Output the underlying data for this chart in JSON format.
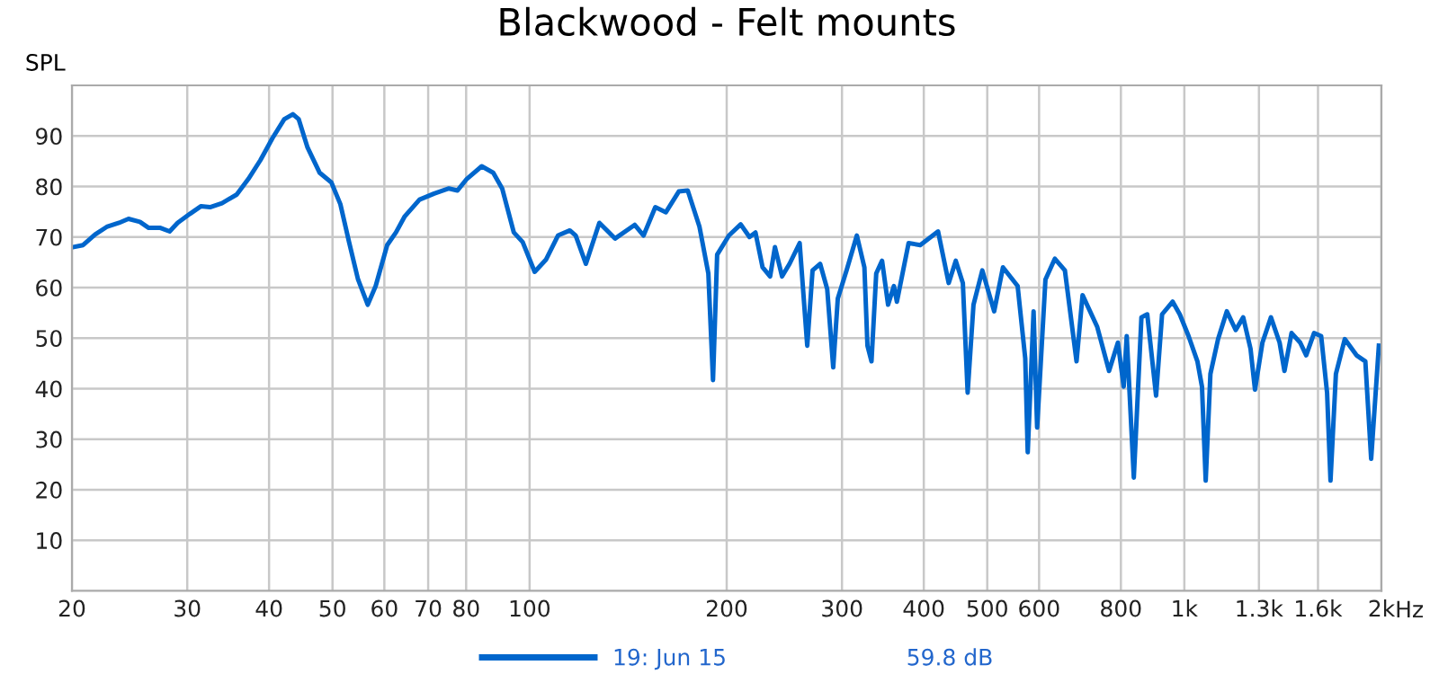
{
  "chart_data": {
    "type": "line",
    "title": "Blackwood - Felt mounts",
    "ylabel": "SPL",
    "xlim": [
      20,
      2000
    ],
    "ylim": [
      0,
      100
    ],
    "log": "x",
    "grid": true,
    "legend": "bottom",
    "line_style": "solid",
    "marker": "none",
    "xticks": [
      20,
      30,
      40,
      50,
      60,
      70,
      80,
      100,
      200,
      300,
      400,
      500,
      600,
      800,
      {
        "value": 1000,
        "label": "1k"
      },
      {
        "value": 1300,
        "label": "1.3k"
      },
      {
        "value": 1600,
        "label": "1.6k"
      },
      {
        "value": 2000,
        "label": "2k"
      }
    ],
    "xlabel": "Hz",
    "yticks": [
      10,
      20,
      30,
      40,
      50,
      60,
      70,
      80,
      90
    ],
    "annotations": [
      "59.8 dB"
    ],
    "series": [
      {
        "name": "19: Jun 15",
        "color": "#0066cc",
        "x": [
          20.1,
          20.8,
          21.7,
          22.6,
          23.6,
          24.4,
          25.4,
          26.2,
          27.3,
          28.2,
          29.0,
          30.3,
          31.5,
          32.5,
          33.9,
          35.7,
          37.2,
          38.8,
          40.5,
          42.2,
          43.5,
          44.4,
          45.8,
          47.8,
          49.8,
          51.4,
          53.0,
          54.7,
          56.6,
          58.2,
          60.6,
          62.5,
          64.4,
          67.9,
          71.5,
          75.3,
          77.6,
          80.2,
          84.5,
          88.0,
          90.8,
          94.6,
          97.6,
          101.8,
          105.9,
          110.5,
          115.2,
          117.6,
          121.9,
          127.8,
          135.1,
          144.7,
          149.3,
          155.6,
          161.5,
          169.0,
          174.4,
          181.7,
          187.5,
          190.6,
          193.4,
          201.6,
          210.1,
          216.7,
          221.3,
          226.9,
          233.0,
          237.0,
          243.0,
          249.5,
          258.5,
          265.5,
          270.5,
          277.8,
          284.8,
          290.9,
          295.6,
          304.9,
          316.1,
          324.6,
          328.1,
          332.8,
          338.4,
          345.4,
          352.8,
          360.1,
          363.9,
          379.2,
          395,
          420.6,
          436.6,
          447.6,
          458.9,
          466.7,
          476.4,
          491.4,
          512.3,
          528.4,
          556.4,
          571.5,
          576.5,
          588.5,
          595.9,
          613.6,
          634.1,
          657.0,
          684.5,
          699.1,
          736.2,
          767.4,
          791.6,
          808.0,
          816.6,
          837.2,
          859.9,
          877.7,
          905.4,
          924.7,
          959.8,
          984.0,
          1015,
          1047,
          1064,
          1078,
          1096,
          1126,
          1161,
          1198,
          1230,
          1262,
          1282,
          1316,
          1356,
          1398,
          1422,
          1458,
          1503,
          1535,
          1578,
          1618,
          1652,
          1672,
          1704,
          1758,
          1832,
          1890,
          1929,
          1982
        ],
        "values": [
          68,
          68.4,
          70.5,
          72,
          72.8,
          73.6,
          73,
          71.8,
          71.8,
          71.1,
          72.8,
          74.6,
          76.1,
          75.9,
          76.7,
          78.4,
          81.5,
          85.2,
          89.6,
          93.3,
          94.3,
          93.3,
          87.7,
          82.7,
          80.8,
          76.5,
          69,
          61.6,
          56.6,
          60.3,
          68.4,
          70.9,
          74,
          77.4,
          78.6,
          79.6,
          79.2,
          81.5,
          84,
          82.7,
          79.6,
          70.9,
          69,
          63.1,
          65.5,
          70.3,
          71.3,
          70.3,
          64.7,
          72.8,
          69.7,
          72.4,
          70.3,
          75.9,
          74.9,
          79,
          79.2,
          72.1,
          62.8,
          41.7,
          66.5,
          70.3,
          72.5,
          70,
          70.9,
          64,
          62.2,
          68,
          62.2,
          64.7,
          68.8,
          48.5,
          63.4,
          64.7,
          59.7,
          44.2,
          57.8,
          63.4,
          70.3,
          64,
          48.5,
          45.4,
          62.8,
          65.3,
          56.6,
          60.3,
          57.2,
          68.8,
          68.4,
          71.1,
          60.9,
          65.3,
          60.9,
          39.2,
          56.6,
          63.4,
          55.3,
          64,
          60.3,
          46,
          27.4,
          55.3,
          32.3,
          61.6,
          65.7,
          63.4,
          45.4,
          58.5,
          52.2,
          43.5,
          49.1,
          40.4,
          50.4,
          22.4,
          54.1,
          54.7,
          38.6,
          54.7,
          57.2,
          54.7,
          50.4,
          45.4,
          40.4,
          21.8,
          42.9,
          49.8,
          55.3,
          51.6,
          54.1,
          47.9,
          39.8,
          49.1,
          54.1,
          49.1,
          43.5,
          51,
          49.1,
          46.6,
          51,
          50.4,
          39.2,
          21.8,
          42.9,
          49.8,
          46.6,
          45.4,
          26.1,
          48.5
        ]
      }
    ]
  }
}
